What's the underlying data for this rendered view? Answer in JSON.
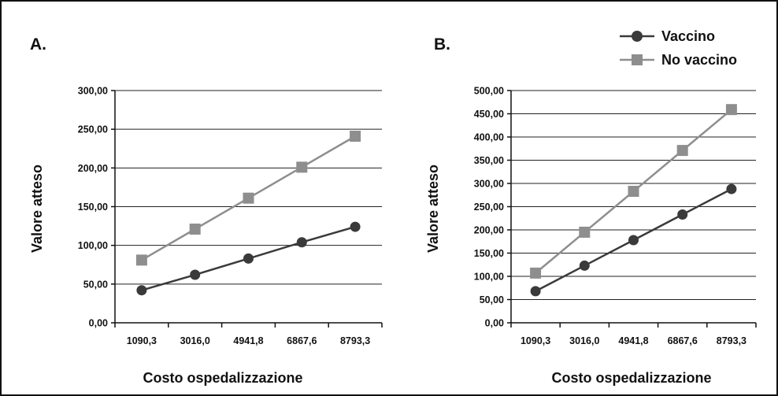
{
  "colors": {
    "vaccino": "#3a3a3a",
    "no_vaccino": "#8e8e8e",
    "grid": "#222222",
    "frame": "#111111"
  },
  "legend": {
    "position": "top-right",
    "items": [
      {
        "label": "Vaccino",
        "marker": "circle",
        "color": "#3a3a3a"
      },
      {
        "label": "No vaccino",
        "marker": "square",
        "color": "#8e8e8e"
      }
    ]
  },
  "chart_data": [
    {
      "type": "line",
      "panel": "A.",
      "xlabel": "Costo ospedalizzazione",
      "ylabel": "Valore atteso",
      "categories": [
        "1090,3",
        "3016,0",
        "4941,8",
        "6867,6",
        "8793,3"
      ],
      "ylim": [
        0,
        300
      ],
      "yticks": [
        "0,00",
        "50,00",
        "100,00",
        "150,00",
        "200,00",
        "250,00",
        "300,00"
      ],
      "grid": true,
      "series": [
        {
          "name": "Vaccino",
          "marker": "circle",
          "values": [
            42,
            62,
            83,
            104,
            124
          ]
        },
        {
          "name": "No vaccino",
          "marker": "square",
          "values": [
            81,
            121,
            161,
            201,
            241
          ]
        }
      ]
    },
    {
      "type": "line",
      "panel": "B.",
      "xlabel": "Costo ospedalizzazione",
      "ylabel": "Valore atteso",
      "categories": [
        "1090,3",
        "3016,0",
        "4941,8",
        "6867,6",
        "8793,3"
      ],
      "ylim": [
        0,
        500
      ],
      "yticks": [
        "0,00",
        "50,00",
        "100,00",
        "150,00",
        "200,00",
        "250,00",
        "300,00",
        "350,00",
        "400,00",
        "450,00",
        "500,00"
      ],
      "grid": true,
      "series": [
        {
          "name": "Vaccino",
          "marker": "circle",
          "values": [
            68,
            123,
            178,
            233,
            288
          ]
        },
        {
          "name": "No vaccino",
          "marker": "square",
          "values": [
            107,
            195,
            283,
            371,
            459
          ]
        }
      ]
    }
  ]
}
